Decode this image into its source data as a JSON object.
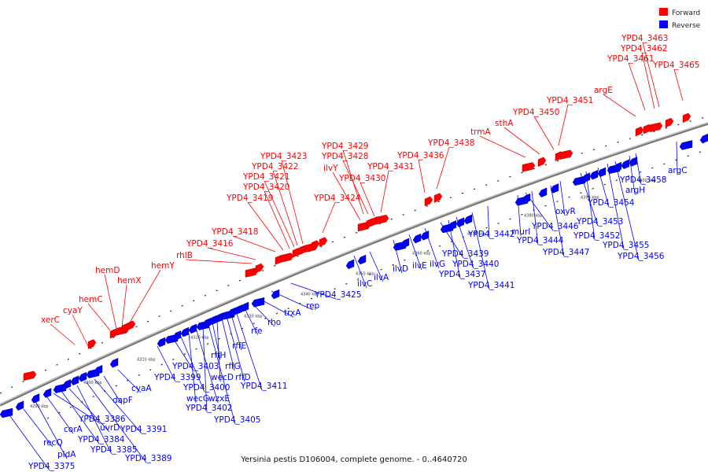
{
  "caption": "Yersinia pestis D106004, complete genome. - 0..4640720",
  "legend": [
    {
      "label": "Forward",
      "color": "#ff0000"
    },
    {
      "label": "Reverse",
      "color": "#0000ff"
    }
  ],
  "colors": {
    "forward": "#ff0000",
    "reverse": "#0000ff",
    "backbone": "#666666",
    "leader": "#ff0000",
    "leader_rev": "#0000ff"
  },
  "ticks": [
    "4290 kbp",
    "4300 kbp",
    "4310 kbp",
    "4320 kbp",
    "4330 kbp",
    "4340 kbp",
    "4350 kbp",
    "4360 kbp",
    "4370 kbp",
    "4380 kbp",
    "4390 kbp",
    "4400 kbp"
  ],
  "forward_labels": [
    "cyaY",
    "xerC",
    "hemC",
    "hemD",
    "hemX",
    "hemY",
    "rhlB",
    "YPD4_3416",
    "YPD4_3418",
    "YPD4_3419",
    "YPD4_3420",
    "YPD4_3421",
    "YPD4_3422",
    "YPD4_3423",
    "YPD4_3424",
    "ilvY",
    "YPD4_3429",
    "YPD4_3428",
    "YPD4_3430",
    "YPD4_3431",
    "YPD4_3436",
    "YPD4_3438",
    "trmA",
    "sthA",
    "YPD4_3450",
    "YPD4_3451",
    "argE",
    "YPD4_3461",
    "YPD4_3462",
    "YPD4_3463",
    "YPD4_3465"
  ],
  "reverse_labels": [
    "YPD4_3375",
    "recQ",
    "pldA",
    "corA",
    "YPD4_3386",
    "YPD4_3384",
    "uvrD",
    "YPD4_3385",
    "YPD4_3389",
    "YPD4_3391",
    "dapF",
    "cyaA",
    "YPD4_3399",
    "YPD4_3403",
    "YPD4_3400",
    "wecG",
    "wzxE",
    "YPD4_3402",
    "YPD4_3405",
    "rffH",
    "wecD",
    "rffG",
    "rffD",
    "rffE",
    "YPD4_3411",
    "rfe",
    "rho",
    "trxA",
    "rep",
    "YPD4_3425",
    "ilvC",
    "ilvA",
    "ilvD",
    "ilvE",
    "ilvG",
    "YPD4_3439",
    "YPD4_3437",
    "YPD4_3440",
    "YPD4_3441",
    "YPD4_3442",
    "murI",
    "YPD4_3446",
    "YPD4_3444",
    "YPD4_3447",
    "oxyR",
    "YPD4_3453",
    "YPD4_3452",
    "YPD4_3454",
    "YPD4_3455",
    "YPD4_3456",
    "argH",
    "YPD4_3458",
    "argC"
  ]
}
